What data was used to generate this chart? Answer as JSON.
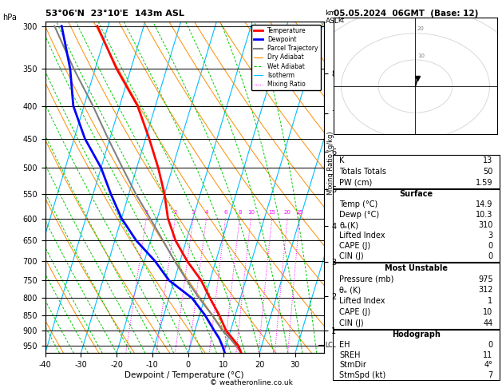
{
  "title_left": "53°06'N  23°10'E  143m ASL",
  "title_right": "05.05.2024  06GMT  (Base: 12)",
  "xlabel": "Dewpoint / Temperature (°C)",
  "pressure_levels": [
    300,
    350,
    400,
    450,
    500,
    550,
    600,
    650,
    700,
    750,
    800,
    850,
    900,
    950
  ],
  "pressure_min": 295,
  "pressure_max": 975,
  "temp_min": -40,
  "temp_max": 38,
  "skew_factor": 28,
  "temp_profile_p": [
    975,
    950,
    925,
    900,
    850,
    800,
    750,
    700,
    650,
    600,
    550,
    500,
    450,
    400,
    350,
    300
  ],
  "temp_profile_t": [
    14.9,
    13.5,
    11.2,
    8.8,
    5.5,
    1.5,
    -2.5,
    -8.0,
    -13.0,
    -17.0,
    -20.0,
    -24.0,
    -29.0,
    -35.0,
    -44.0,
    -53.0
  ],
  "dewp_profile_p": [
    975,
    950,
    925,
    900,
    850,
    800,
    750,
    700,
    650,
    600,
    550,
    500,
    450,
    400,
    350,
    300
  ],
  "dewp_profile_t": [
    10.3,
    9.0,
    7.5,
    5.5,
    1.5,
    -3.5,
    -11.5,
    -17.0,
    -24.0,
    -30.0,
    -35.0,
    -40.0,
    -47.0,
    -53.0,
    -57.0,
    -63.0
  ],
  "parcel_profile_p": [
    975,
    950,
    925,
    900,
    850,
    800,
    750,
    700,
    650,
    600,
    550,
    500,
    450,
    400,
    350,
    300
  ],
  "parcel_profile_t": [
    14.9,
    13.0,
    10.5,
    7.8,
    3.5,
    -1.5,
    -6.5,
    -11.5,
    -16.5,
    -22.0,
    -28.0,
    -34.0,
    -40.5,
    -47.5,
    -56.0,
    -65.0
  ],
  "isotherm_color": "#00bfff",
  "dry_adiabat_color": "#ff8c00",
  "wet_adiabat_color": "#00cc00",
  "mixing_ratio_color": "#ff00ff",
  "mixing_ratio_values": [
    1,
    2,
    3,
    4,
    6,
    8,
    10,
    15,
    20,
    25
  ],
  "temp_color": "#ff0000",
  "dewp_color": "#0000ff",
  "parcel_color": "#808080",
  "lcl_pressure": 948,
  "K_index": 13,
  "totals_totals": 50,
  "PW_cm": 1.59,
  "sfc_temp": 14.9,
  "sfc_dewp": 10.3,
  "sfc_theta_e": 310,
  "lifted_index": 3,
  "CAPE": 0,
  "CIN": 0,
  "mu_pressure": 975,
  "mu_theta_e": 312,
  "mu_lifted_index": 1,
  "mu_CAPE": 10,
  "mu_CIN": 44,
  "hodo_EH": 0,
  "hodo_SREH": 11,
  "hodo_StmDir": 4,
  "hodo_StmSpd": 7,
  "bg_color": "#ffffff",
  "copyright": "© weatheronline.co.uk"
}
